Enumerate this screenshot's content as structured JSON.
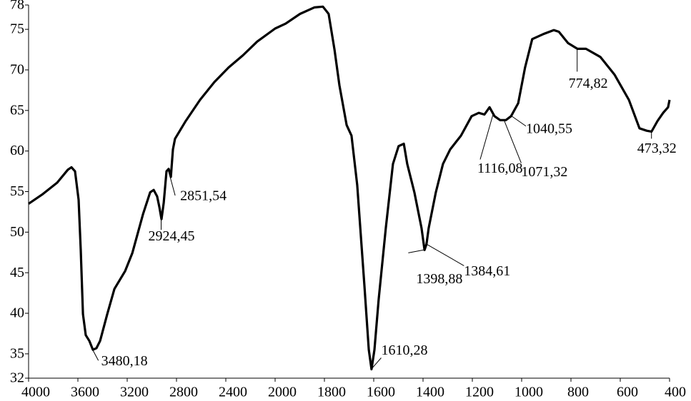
{
  "chart_data": {
    "type": "line",
    "x": [
      4000,
      3884,
      3768,
      3681,
      3652,
      3623,
      3594,
      3577,
      3559,
      3536,
      3507,
      3478,
      3449,
      3420,
      3362,
      3304,
      3217,
      3159,
      3072,
      3014,
      2985,
      2957,
      2939,
      2922,
      2904,
      2881,
      2864,
      2846,
      2829,
      2812,
      2725,
      2609,
      2493,
      2377,
      2261,
      2145,
      2000,
      1957,
      1899,
      1841,
      1806,
      1783,
      1759,
      1739,
      1710,
      1690,
      1667,
      1638,
      1620,
      1609,
      1597,
      1580,
      1551,
      1522,
      1499,
      1478,
      1464,
      1435,
      1406,
      1394,
      1386,
      1377,
      1348,
      1319,
      1290,
      1246,
      1203,
      1174,
      1151,
      1130,
      1110,
      1087,
      1064,
      1043,
      1014,
      986,
      957,
      913,
      870,
      849,
      812,
      774,
      739,
      681,
      623,
      565,
      522,
      493,
      473,
      449,
      426,
      406,
      400
    ],
    "values": [
      53.5,
      54.7,
      56.1,
      57.7,
      58.0,
      57.5,
      54.0,
      47.8,
      39.9,
      37.3,
      36.6,
      35.5,
      35.7,
      36.6,
      39.9,
      43.0,
      45.2,
      47.4,
      52.2,
      54.9,
      55.2,
      54.4,
      53.1,
      51.6,
      53.6,
      57.5,
      57.8,
      56.8,
      60.2,
      61.5,
      63.7,
      66.3,
      68.5,
      70.3,
      71.8,
      73.5,
      75.1,
      75.7,
      76.9,
      77.7,
      77.8,
      76.9,
      72.5,
      68.1,
      63.2,
      61.9,
      55.8,
      43.5,
      35.5,
      33.1,
      35.5,
      41.7,
      50.5,
      58.4,
      60.6,
      60.9,
      58.4,
      54.9,
      50.5,
      47.8,
      48.5,
      50.5,
      54.9,
      58.4,
      60.2,
      61.9,
      64.3,
      64.7,
      64.5,
      65.4,
      64.3,
      63.8,
      63.8,
      64.3,
      65.9,
      70.3,
      73.8,
      74.4,
      74.9,
      74.7,
      73.3,
      72.6,
      72.6,
      71.6,
      69.4,
      66.3,
      62.8,
      62.5,
      62.4,
      63.7,
      64.7,
      65.4,
      66.3
    ],
    "color": "#000000",
    "xlim": [
      4000,
      400
    ],
    "xticks": [
      4000,
      3600,
      3200,
      2800,
      2400,
      2000,
      1800,
      1600,
      1400,
      1200,
      1000,
      800,
      600,
      400
    ],
    "ylim": [
      32,
      78
    ],
    "yticks": [
      32,
      35,
      40,
      45,
      50,
      55,
      60,
      65,
      70,
      75,
      78
    ],
    "annotations": [
      {
        "text": "3480,18",
        "x": 3480.18,
        "y": 35.5
      },
      {
        "text": "2924,45",
        "x": 2924.45,
        "y": 51.6
      },
      {
        "text": "2851,54",
        "x": 2851.54,
        "y": 56.8
      },
      {
        "text": "1610,28",
        "x": 1610.28,
        "y": 33.1
      },
      {
        "text": "1398,88",
        "x": 1398.88,
        "y": 47.8
      },
      {
        "text": "1384,61",
        "x": 1384.61,
        "y": 48.5
      },
      {
        "text": "1116,08",
        "x": 1116.08,
        "y": 64.5
      },
      {
        "text": "1071,32",
        "x": 1071.32,
        "y": 63.8
      },
      {
        "text": "1040,55",
        "x": 1040.55,
        "y": 64.3
      },
      {
        "text": "774,82",
        "x": 774.82,
        "y": 72.6
      },
      {
        "text": "473,32",
        "x": 473.32,
        "y": 62.4
      }
    ]
  }
}
